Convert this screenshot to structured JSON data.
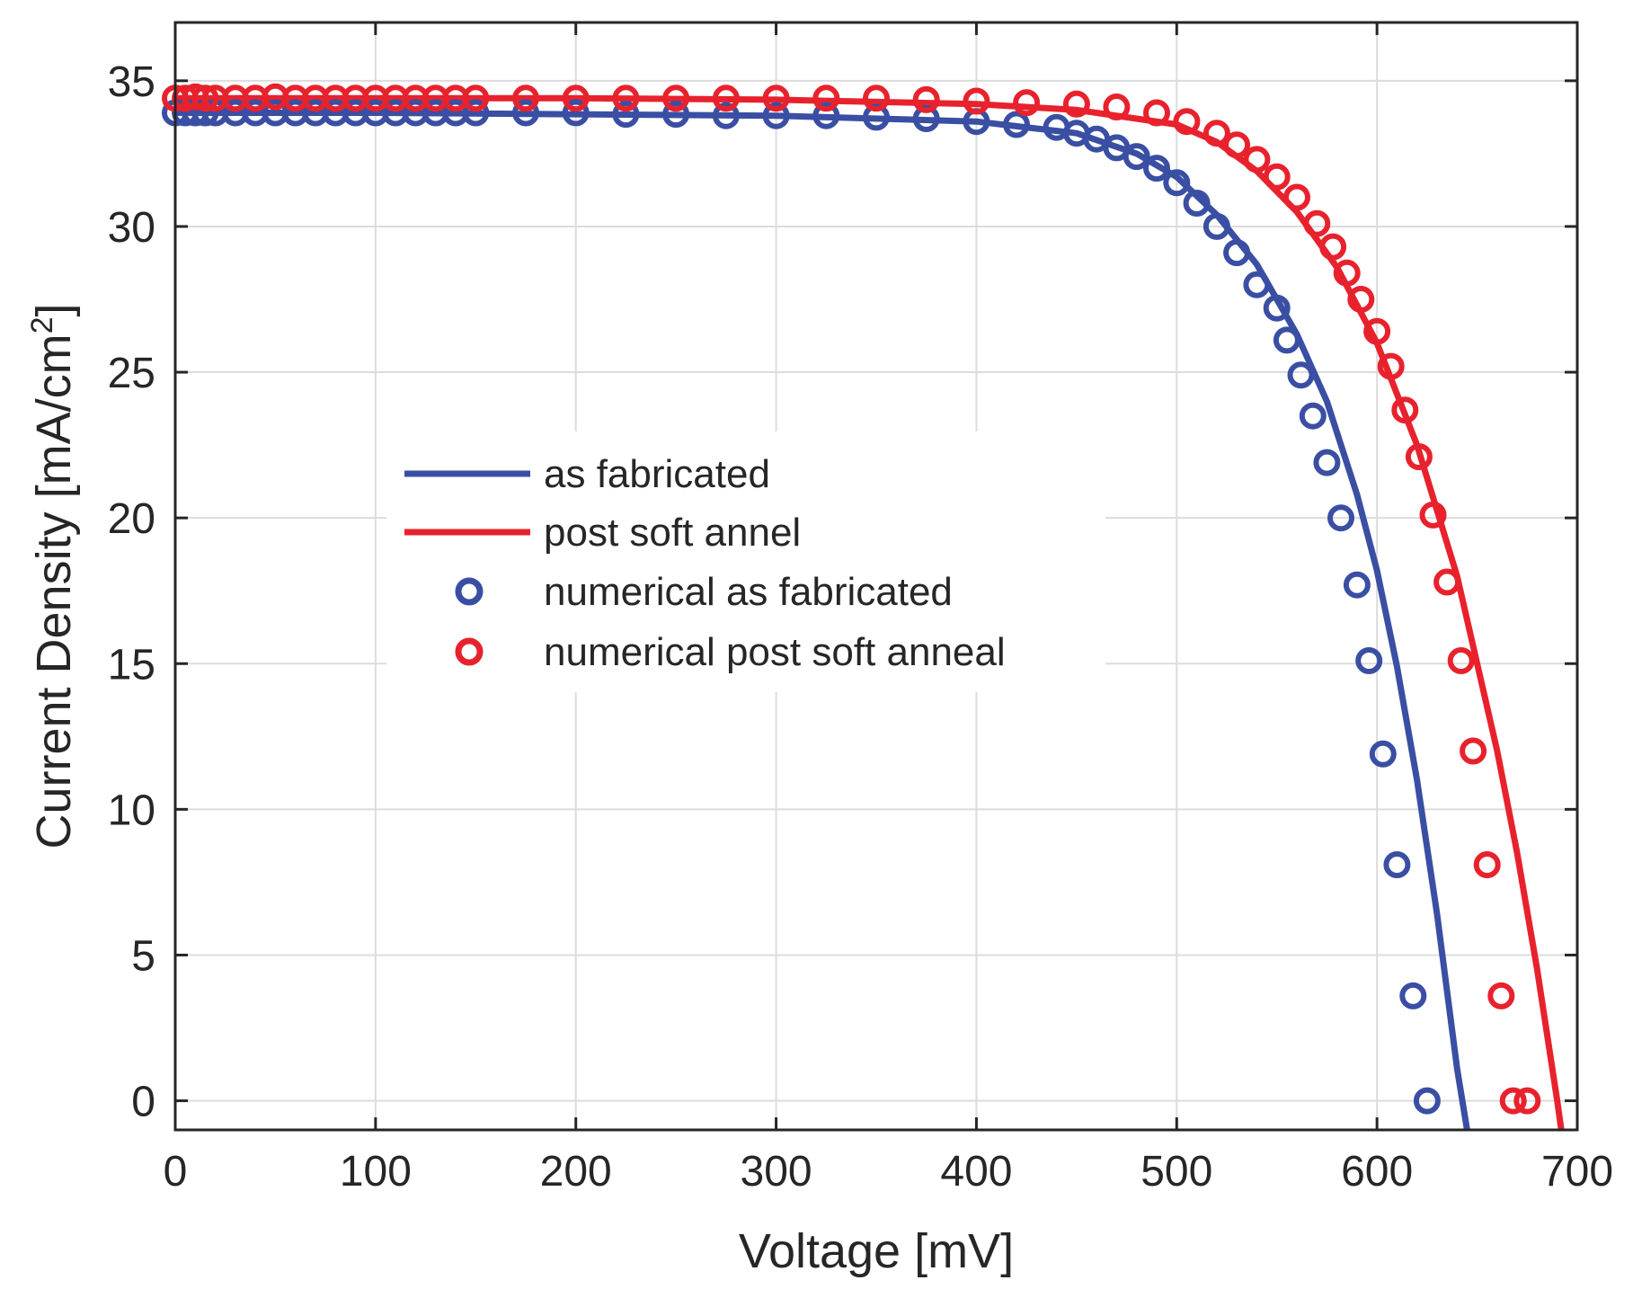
{
  "chart_data": {
    "type": "line",
    "xlabel": "Voltage [mV]",
    "ylabel_main": "Current Density [mA/cm",
    "ylabel_sup": "2",
    "ylabel_close": "]",
    "xlim": [
      0,
      700
    ],
    "ylim": [
      -1,
      37
    ],
    "xticks": [
      0,
      100,
      200,
      300,
      400,
      500,
      600,
      700
    ],
    "yticks": [
      0,
      5,
      10,
      15,
      20,
      25,
      30,
      35
    ],
    "grid": true,
    "legend_position": "center-left",
    "colors": {
      "blue": "#3a4fa3",
      "red": "#e8222d"
    },
    "series": [
      {
        "name": "as fabricated",
        "style": "line",
        "color": "#3a4fa3",
        "x": [
          0,
          100,
          200,
          300,
          400,
          450,
          480,
          500,
          520,
          540,
          560,
          575,
          590,
          600,
          610,
          620,
          630,
          640,
          645
        ],
        "y": [
          33.9,
          33.9,
          33.85,
          33.8,
          33.6,
          33.2,
          32.5,
          31.7,
          30.4,
          28.7,
          26.3,
          24.0,
          20.8,
          18.2,
          14.9,
          11.0,
          6.4,
          1.1,
          -1.5
        ]
      },
      {
        "name": "post soft annel",
        "style": "line",
        "color": "#e8222d",
        "x": [
          0,
          100,
          200,
          300,
          400,
          450,
          500,
          520,
          540,
          560,
          580,
          600,
          620,
          640,
          660,
          670,
          680,
          690,
          692
        ],
        "y": [
          34.4,
          34.4,
          34.4,
          34.35,
          34.2,
          34.0,
          33.5,
          32.9,
          31.9,
          30.5,
          28.6,
          26.0,
          22.5,
          18.0,
          12.0,
          8.5,
          4.5,
          0.0,
          -1.0
        ]
      },
      {
        "name": "numerical as fabricated",
        "style": "markers",
        "color": "#3a4fa3",
        "x": [
          0,
          5,
          10,
          15,
          20,
          30,
          40,
          50,
          60,
          70,
          80,
          90,
          100,
          110,
          120,
          130,
          140,
          150,
          175,
          200,
          225,
          250,
          275,
          300,
          325,
          350,
          375,
          400,
          420,
          440,
          450,
          460,
          470,
          480,
          490,
          500,
          510,
          520,
          530,
          540,
          550,
          555,
          562,
          568,
          575,
          582,
          590,
          596,
          603,
          610,
          618,
          625
        ],
        "y": [
          33.9,
          33.9,
          33.9,
          33.9,
          33.9,
          33.9,
          33.9,
          33.9,
          33.9,
          33.9,
          33.9,
          33.9,
          33.9,
          33.9,
          33.9,
          33.9,
          33.9,
          33.9,
          33.9,
          33.9,
          33.85,
          33.85,
          33.8,
          33.8,
          33.8,
          33.75,
          33.7,
          33.6,
          33.5,
          33.4,
          33.2,
          33.0,
          32.7,
          32.4,
          32.0,
          31.5,
          30.8,
          30.0,
          29.1,
          28.0,
          27.2,
          26.1,
          24.9,
          23.5,
          21.9,
          20.0,
          17.7,
          15.1,
          11.9,
          8.1,
          3.6,
          0.0
        ]
      },
      {
        "name": "numerical post soft anneal",
        "style": "markers",
        "color": "#e8222d",
        "x": [
          0,
          5,
          10,
          15,
          20,
          30,
          40,
          50,
          60,
          70,
          80,
          90,
          100,
          110,
          120,
          130,
          140,
          150,
          175,
          200,
          225,
          250,
          275,
          300,
          325,
          350,
          375,
          400,
          425,
          450,
          470,
          490,
          505,
          520,
          530,
          540,
          550,
          560,
          570,
          578,
          585,
          592,
          600,
          607,
          614,
          621,
          628,
          635,
          642,
          648,
          655,
          662,
          668,
          675
        ],
        "y": [
          34.4,
          34.4,
          34.45,
          34.4,
          34.4,
          34.4,
          34.4,
          34.45,
          34.4,
          34.4,
          34.4,
          34.4,
          34.4,
          34.4,
          34.4,
          34.4,
          34.4,
          34.4,
          34.4,
          34.4,
          34.4,
          34.4,
          34.4,
          34.4,
          34.4,
          34.4,
          34.35,
          34.3,
          34.25,
          34.2,
          34.1,
          33.9,
          33.6,
          33.2,
          32.8,
          32.3,
          31.7,
          31.0,
          30.1,
          29.3,
          28.4,
          27.5,
          26.4,
          25.2,
          23.7,
          22.1,
          20.1,
          17.8,
          15.1,
          12.0,
          8.1,
          3.6,
          0.0,
          0.0
        ]
      }
    ]
  }
}
